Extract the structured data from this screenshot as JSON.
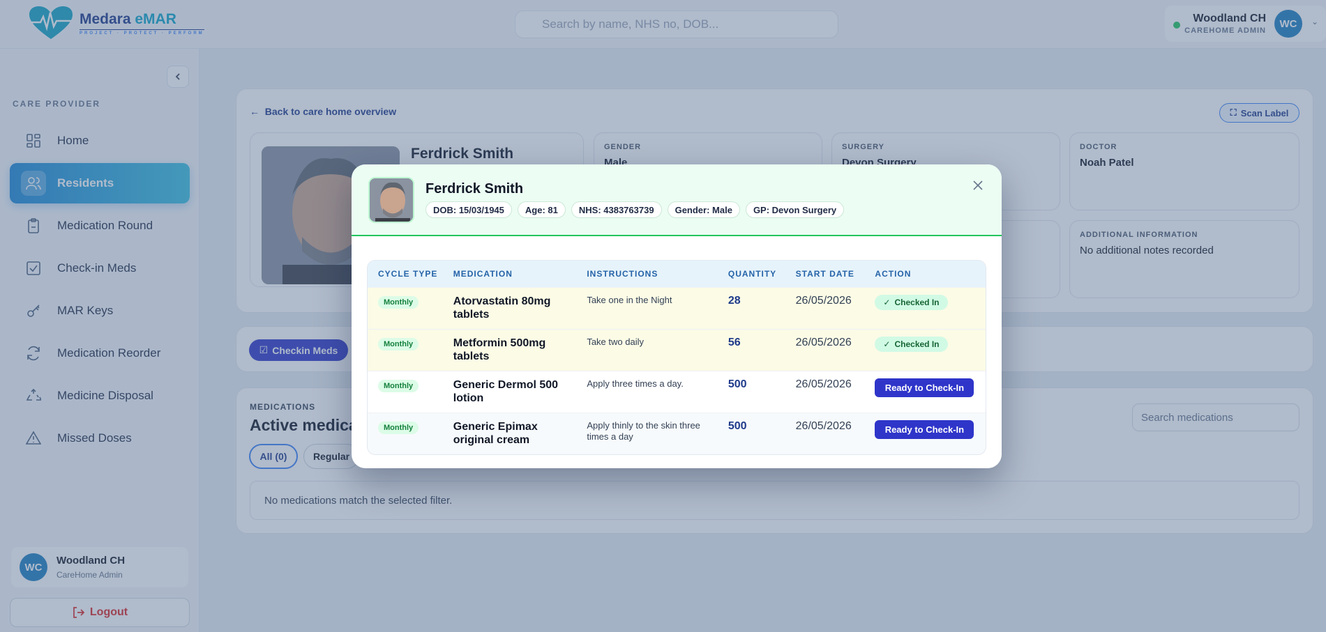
{
  "brand": {
    "name_a": "Medara",
    "name_b": "eMAR",
    "tagline": "PROJECT · PROTECT · PERFORM"
  },
  "topbar": {
    "search_placeholder": "Search by name, NHS no, DOB...",
    "user_name": "Woodland CH",
    "user_role": "CAREHOME ADMIN",
    "initials": "WC"
  },
  "sidebar": {
    "section_label": "CARE PROVIDER",
    "items": [
      {
        "label": "Home",
        "icon": "grid-icon"
      },
      {
        "label": "Residents",
        "icon": "users-icon"
      },
      {
        "label": "Medication Round",
        "icon": "clipboard-icon"
      },
      {
        "label": "Check-in Meds",
        "icon": "check-square-icon"
      },
      {
        "label": "MAR Keys",
        "icon": "key-icon"
      },
      {
        "label": "Medication Reorder",
        "icon": "refresh-icon"
      },
      {
        "label": "Medicine Disposal",
        "icon": "recycle-icon"
      },
      {
        "label": "Missed Doses",
        "icon": "warning-icon"
      }
    ],
    "user_name": "Woodland CH",
    "user_role": "CareHome Admin",
    "initials": "WC",
    "logout": "Logout"
  },
  "page": {
    "back_link": "Back to care home overview",
    "scan_label": "Scan Label",
    "resident_name": "Ferdrick Smith",
    "gender_label": "GENDER",
    "gender_value": "Male",
    "surgery_label": "SURGERY",
    "surgery_value": "Devon Surgery",
    "doctor_label": "DOCTOR",
    "doctor_value": "Noah Patel",
    "addl_label": "ADDITIONAL INFORMATION",
    "addl_value": "No additional notes recorded",
    "checkin_button": "Checkin Meds",
    "meds_kicker": "MEDICATIONS",
    "meds_title": "Active medications",
    "filter_all": "All (0)",
    "filter_regular": "Regular",
    "search_meds": "Search medications",
    "empty_text": "No medications match the selected filter."
  },
  "modal": {
    "name": "Ferdrick Smith",
    "pills": [
      "DOB: 15/03/1945",
      "Age: 81",
      "NHS: 4383763739",
      "Gender: Male",
      "GP: Devon Surgery"
    ],
    "columns": [
      "CYCLE TYPE",
      "MEDICATION",
      "INSTRUCTIONS",
      "QUANTITY",
      "START DATE",
      "ACTION"
    ],
    "rows": [
      {
        "cycle": "Monthly",
        "medication": "Atorvastatin 80mg tablets",
        "instructions": "Take one in the Night",
        "quantity": "28",
        "start_date": "26/05/2026",
        "action": "Checked In",
        "status": "checked"
      },
      {
        "cycle": "Monthly",
        "medication": "Metformin 500mg tablets",
        "instructions": "Take two daily",
        "quantity": "56",
        "start_date": "26/05/2026",
        "action": "Checked In",
        "status": "checked"
      },
      {
        "cycle": "Monthly",
        "medication": "Generic Dermol 500 lotion",
        "instructions": "Apply three times a day.",
        "quantity": "500",
        "start_date": "26/05/2026",
        "action": "Ready to Check-In",
        "status": "pending"
      },
      {
        "cycle": "Monthly",
        "medication": "Generic Epimax original cream",
        "instructions": "Apply thinly to the skin three times a day",
        "quantity": "500",
        "start_date": "26/05/2026",
        "action": "Ready to Check-In",
        "status": "pending"
      }
    ]
  },
  "colors": {
    "accent": "#2f35c9",
    "active_nav": "#1e88d6",
    "success": "#22c55e",
    "logout": "#dc2626"
  }
}
